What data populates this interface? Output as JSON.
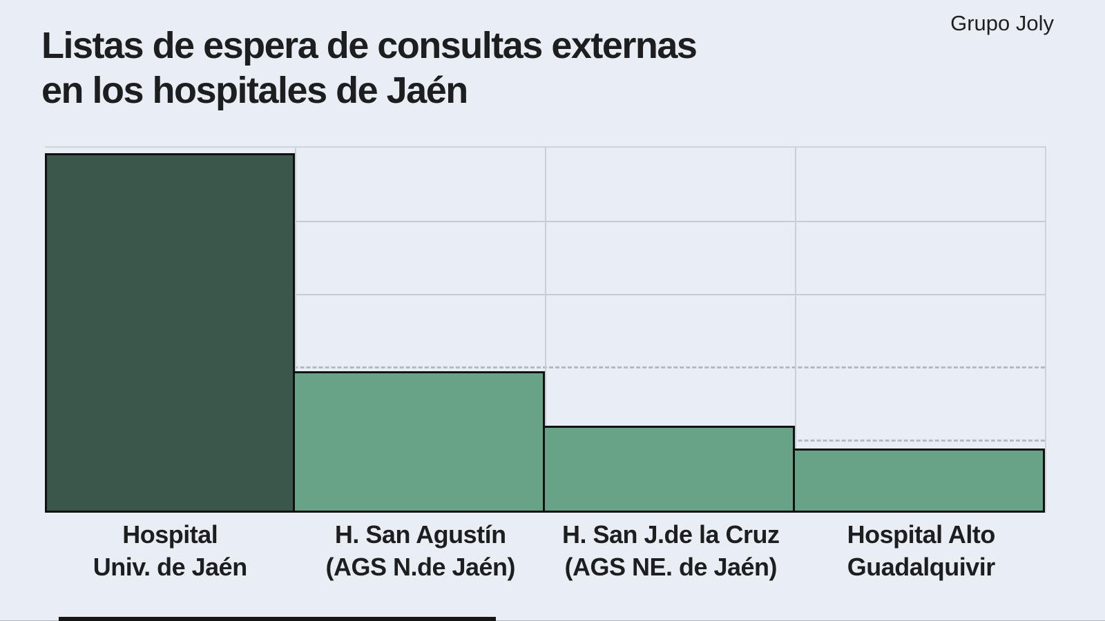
{
  "header": {
    "credit": "Grupo Joly",
    "title_line1": "Listas de espera de consultas externas",
    "title_line2": "en los hospitales de Jaén"
  },
  "chart_data": {
    "type": "bar",
    "title": "Listas de espera de consultas externas en los hospitales de Jaén",
    "source": "Grupo Joly",
    "categories": [
      "Hospital Univ. de Jaén",
      "H. San Agustín (AGS N.de Jaén)",
      "H. San J.de la Cruz (AGS NE. de Jaén)",
      "Hospital Alto Guadalquivir"
    ],
    "category_label_lines": [
      [
        "Hospital",
        "Univ. de Jaén"
      ],
      [
        "H. San Agustín",
        "(AGS N.de Jaén)"
      ],
      [
        "H. San J.de la Cruz",
        "(AGS NE. de Jaén)"
      ],
      [
        "Hospital Alto",
        "Guadalquivir"
      ]
    ],
    "values": [
      4.92,
      1.94,
      1.19,
      0.88
    ],
    "ylim": [
      0,
      5
    ],
    "yticks_labeled": false,
    "gridlines": [
      {
        "value": 4,
        "style": "solid"
      },
      {
        "value": 3,
        "style": "solid"
      },
      {
        "value": 2,
        "style": "dashed"
      },
      {
        "value": 1,
        "style": "dashed"
      }
    ],
    "bar_colors": [
      "#3a574b",
      "#68a287",
      "#68a287",
      "#68a287"
    ],
    "xlabel": "",
    "ylabel": "",
    "legend": false
  },
  "colors": {
    "background": "#e9eef5",
    "bar_dark": "#3a574b",
    "bar_light": "#68a287",
    "bar_border": "#101211",
    "grid_solid": "#c6ccd3",
    "grid_dashed": "#b4bac1",
    "plot_border": "#ced3da",
    "text": "#1c1e20"
  }
}
